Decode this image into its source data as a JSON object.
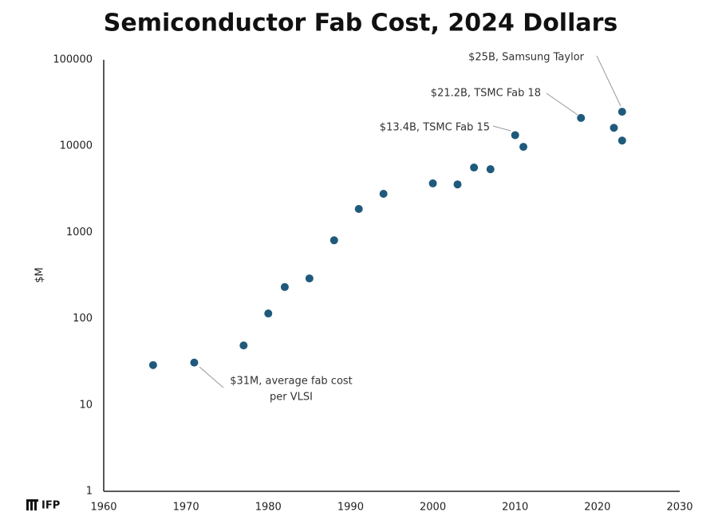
{
  "chart_data": {
    "type": "scatter",
    "title": "Semiconductor Fab Cost, 2024 Dollars",
    "y_label": "$M",
    "x": [
      1966,
      1971,
      1977,
      1980,
      1982,
      1985,
      1988,
      1991,
      1994,
      2000,
      2003,
      2005,
      2007,
      2010,
      2011,
      2018,
      2022,
      2023,
      2023
    ],
    "values": [
      29,
      31,
      49,
      115,
      233,
      293,
      810,
      1870,
      2800,
      3700,
      3600,
      5650,
      5400,
      13400,
      9800,
      21200,
      16300,
      25000,
      11600
    ],
    "color": "#1f5a7c",
    "xlim": [
      1960,
      2030
    ],
    "xticks": [
      1960,
      1970,
      1980,
      1990,
      2000,
      2010,
      2020,
      2030
    ],
    "ylim": [
      1,
      100000
    ],
    "yticks": [
      1,
      10,
      100,
      1000,
      10000,
      100000
    ],
    "yscale": "log",
    "grid": false,
    "annotations": [
      "$25B, Samsung Taylor",
      "$21.2B, TSMC Fab 18",
      "$13.4B, TSMC Fab 15",
      "$31M, average fab cost",
      "per VLSI"
    ],
    "logo": "IFP"
  }
}
